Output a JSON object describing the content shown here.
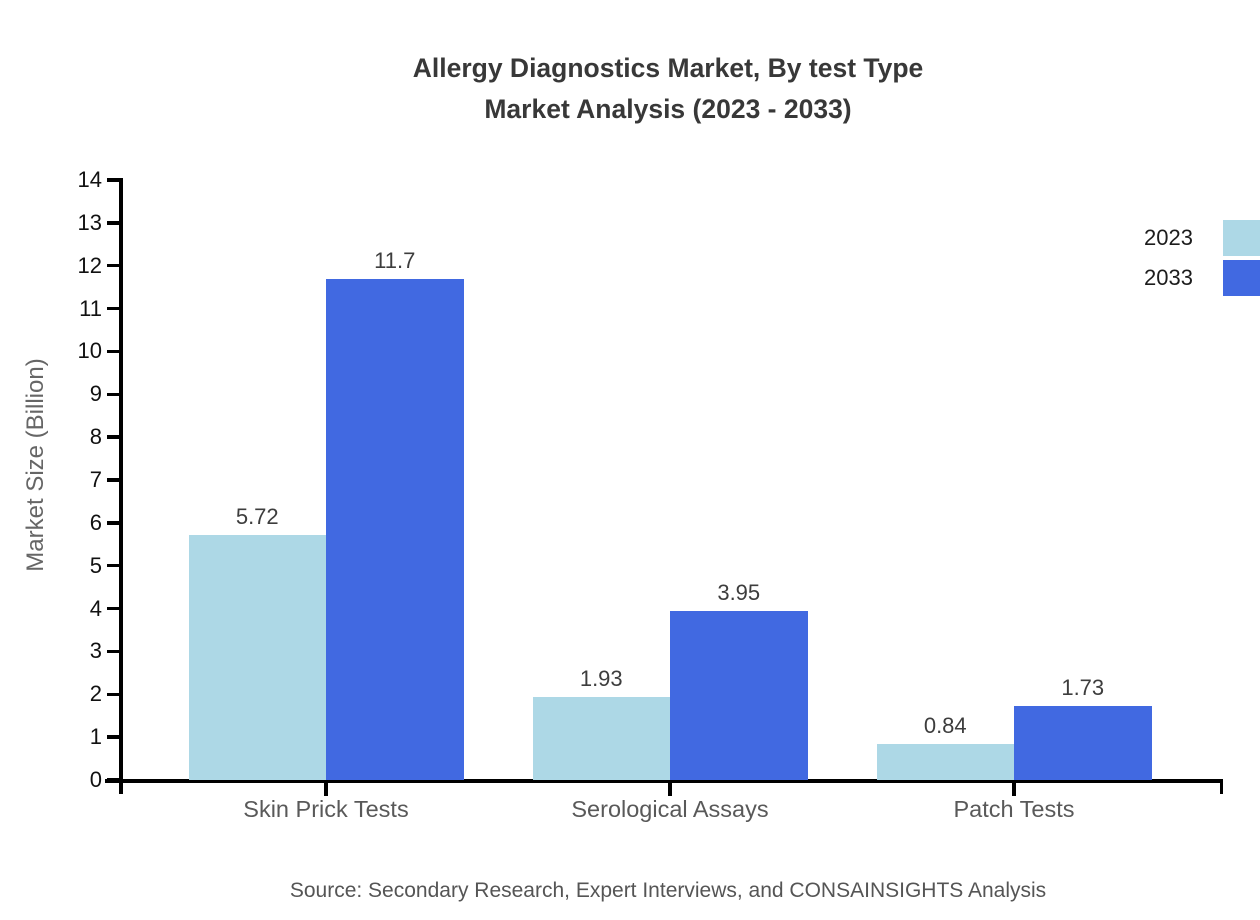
{
  "title": {
    "line1": "Allergy Diagnostics Market, By test Type",
    "line2": "Market Analysis (2023 - 2033)"
  },
  "source": "Source: Secondary Research, Expert Interviews, and CONSAINSIGHTS Analysis",
  "chart_data": {
    "type": "bar",
    "title": "Allergy Diagnostics Market, By test Type Market Analysis (2023 - 2033)",
    "categories": [
      "Skin Prick Tests",
      "Serological Assays",
      "Patch Tests"
    ],
    "series": [
      {
        "name": "2023",
        "color": "#ADD8E6",
        "values": [
          5.72,
          1.93,
          0.84
        ],
        "labels": [
          "5.72",
          "1.93",
          "0.84"
        ]
      },
      {
        "name": "2033",
        "color": "#4169E1",
        "values": [
          11.7,
          3.95,
          1.73
        ],
        "labels": [
          "11.7",
          "3.95",
          "1.73"
        ]
      }
    ],
    "xlabel": "",
    "ylabel": "Market Size (Billion)",
    "ylim": [
      0,
      14
    ],
    "yticks": [
      0,
      1,
      2,
      3,
      4,
      5,
      6,
      7,
      8,
      9,
      10,
      11,
      12,
      13,
      14
    ],
    "grid": false,
    "legend_position": "top-right",
    "axis_color": "#000000"
  }
}
